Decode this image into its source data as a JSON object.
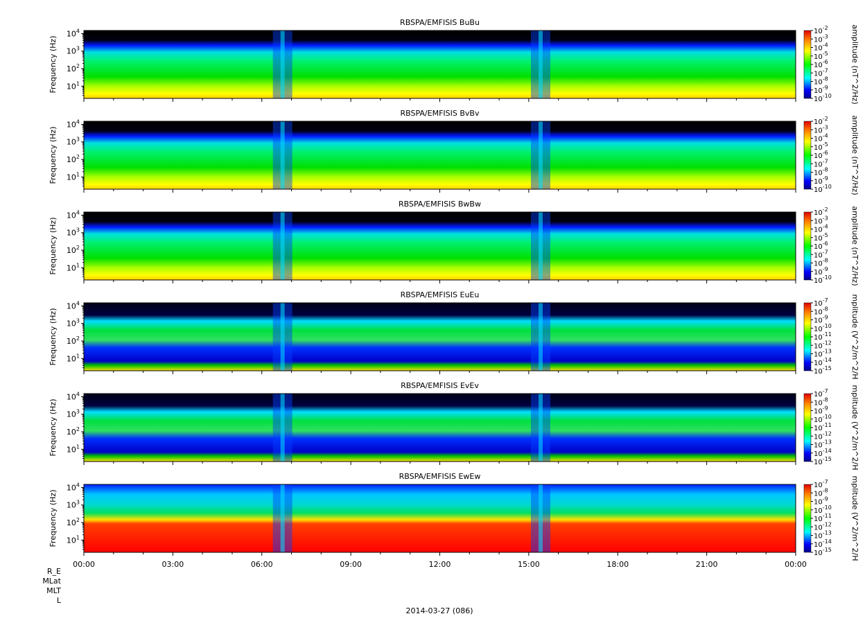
{
  "figure": {
    "date_label": "2014-03-27 (086)",
    "ephemeris_labels": [
      "R_E",
      "MLat",
      "MLT",
      "L"
    ]
  },
  "chart_data": [
    {
      "type": "heatmap",
      "title": "RBSPA/EMFISIS  BuBu",
      "ylabel": "Frequency (Hz)",
      "yscale": "log",
      "ylim": [
        2,
        15000
      ],
      "y_ticks": [
        "10^1",
        "10^2",
        "10^3",
        "10^4"
      ],
      "x_ticks": [
        "00:00",
        "03:00",
        "06:00",
        "09:00",
        "12:00",
        "15:00",
        "18:00",
        "21:00",
        "00:00"
      ],
      "colorbar": {
        "label": "amplitude (nT^2/Hz)",
        "ticks": [
          "10^-2",
          "10^-3",
          "10^-4",
          "10^-5",
          "10^-6",
          "10^-7",
          "10^-8",
          "10^-9",
          "10^-10"
        ]
      },
      "kind": "B"
    },
    {
      "type": "heatmap",
      "title": "RBSPA/EMFISIS  BvBv",
      "ylabel": "Frequency (Hz)",
      "yscale": "log",
      "ylim": [
        2,
        15000
      ],
      "y_ticks": [
        "10^1",
        "10^2",
        "10^3",
        "10^4"
      ],
      "x_ticks": [
        "00:00",
        "03:00",
        "06:00",
        "09:00",
        "12:00",
        "15:00",
        "18:00",
        "21:00",
        "00:00"
      ],
      "colorbar": {
        "label": "amplitude (nT^2/Hz)",
        "ticks": [
          "10^-2",
          "10^-3",
          "10^-4",
          "10^-5",
          "10^-6",
          "10^-7",
          "10^-8",
          "10^-9",
          "10^-10"
        ]
      },
      "kind": "B"
    },
    {
      "type": "heatmap",
      "title": "RBSPA/EMFISIS  BwBw",
      "ylabel": "Frequency (Hz)",
      "yscale": "log",
      "ylim": [
        2,
        15000
      ],
      "y_ticks": [
        "10^1",
        "10^2",
        "10^3",
        "10^4"
      ],
      "x_ticks": [
        "00:00",
        "03:00",
        "06:00",
        "09:00",
        "12:00",
        "15:00",
        "18:00",
        "21:00",
        "00:00"
      ],
      "colorbar": {
        "label": "amplitude (nT^2/Hz)",
        "ticks": [
          "10^-2",
          "10^-3",
          "10^-4",
          "10^-5",
          "10^-6",
          "10^-7",
          "10^-8",
          "10^-9",
          "10^-10"
        ]
      },
      "kind": "B"
    },
    {
      "type": "heatmap",
      "title": "RBSPA/EMFISIS  EuEu",
      "ylabel": "Frequency (Hz)",
      "yscale": "log",
      "ylim": [
        2,
        15000
      ],
      "y_ticks": [
        "10^1",
        "10^2",
        "10^3",
        "10^4"
      ],
      "x_ticks": [
        "00:00",
        "03:00",
        "06:00",
        "09:00",
        "12:00",
        "15:00",
        "18:00",
        "21:00",
        "00:00"
      ],
      "colorbar": {
        "label": "mplitude (V^2/m^2/H",
        "ticks": [
          "10^-7",
          "10^-8",
          "10^-9",
          "10^-10",
          "10^-11",
          "10^-12",
          "10^-13",
          "10^-14",
          "10^-15"
        ]
      },
      "kind": "E"
    },
    {
      "type": "heatmap",
      "title": "RBSPA/EMFISIS  EvEv",
      "ylabel": "Frequency (Hz)",
      "yscale": "log",
      "ylim": [
        2,
        15000
      ],
      "y_ticks": [
        "10^1",
        "10^2",
        "10^3",
        "10^4"
      ],
      "x_ticks": [
        "00:00",
        "03:00",
        "06:00",
        "09:00",
        "12:00",
        "15:00",
        "18:00",
        "21:00",
        "00:00"
      ],
      "colorbar": {
        "label": "mplitude (V^2/m^2/H",
        "ticks": [
          "10^-7",
          "10^-8",
          "10^-9",
          "10^-10",
          "10^-11",
          "10^-12",
          "10^-13",
          "10^-14",
          "10^-15"
        ]
      },
      "kind": "E"
    },
    {
      "type": "heatmap",
      "title": "RBSPA/EMFISIS  EwEw",
      "ylabel": "Frequency (Hz)",
      "yscale": "log",
      "ylim": [
        2,
        15000
      ],
      "y_ticks": [
        "10^1",
        "10^2",
        "10^3",
        "10^4"
      ],
      "x_ticks": [
        "00:00",
        "03:00",
        "06:00",
        "09:00",
        "12:00",
        "15:00",
        "18:00",
        "21:00",
        "00:00"
      ],
      "colorbar": {
        "label": "mplitude (V^2/m^2/H",
        "ticks": [
          "10^-7",
          "10^-8",
          "10^-9",
          "10^-10",
          "10^-11",
          "10^-12",
          "10^-13",
          "10^-14",
          "10^-15"
        ]
      },
      "kind": "Ew"
    }
  ]
}
